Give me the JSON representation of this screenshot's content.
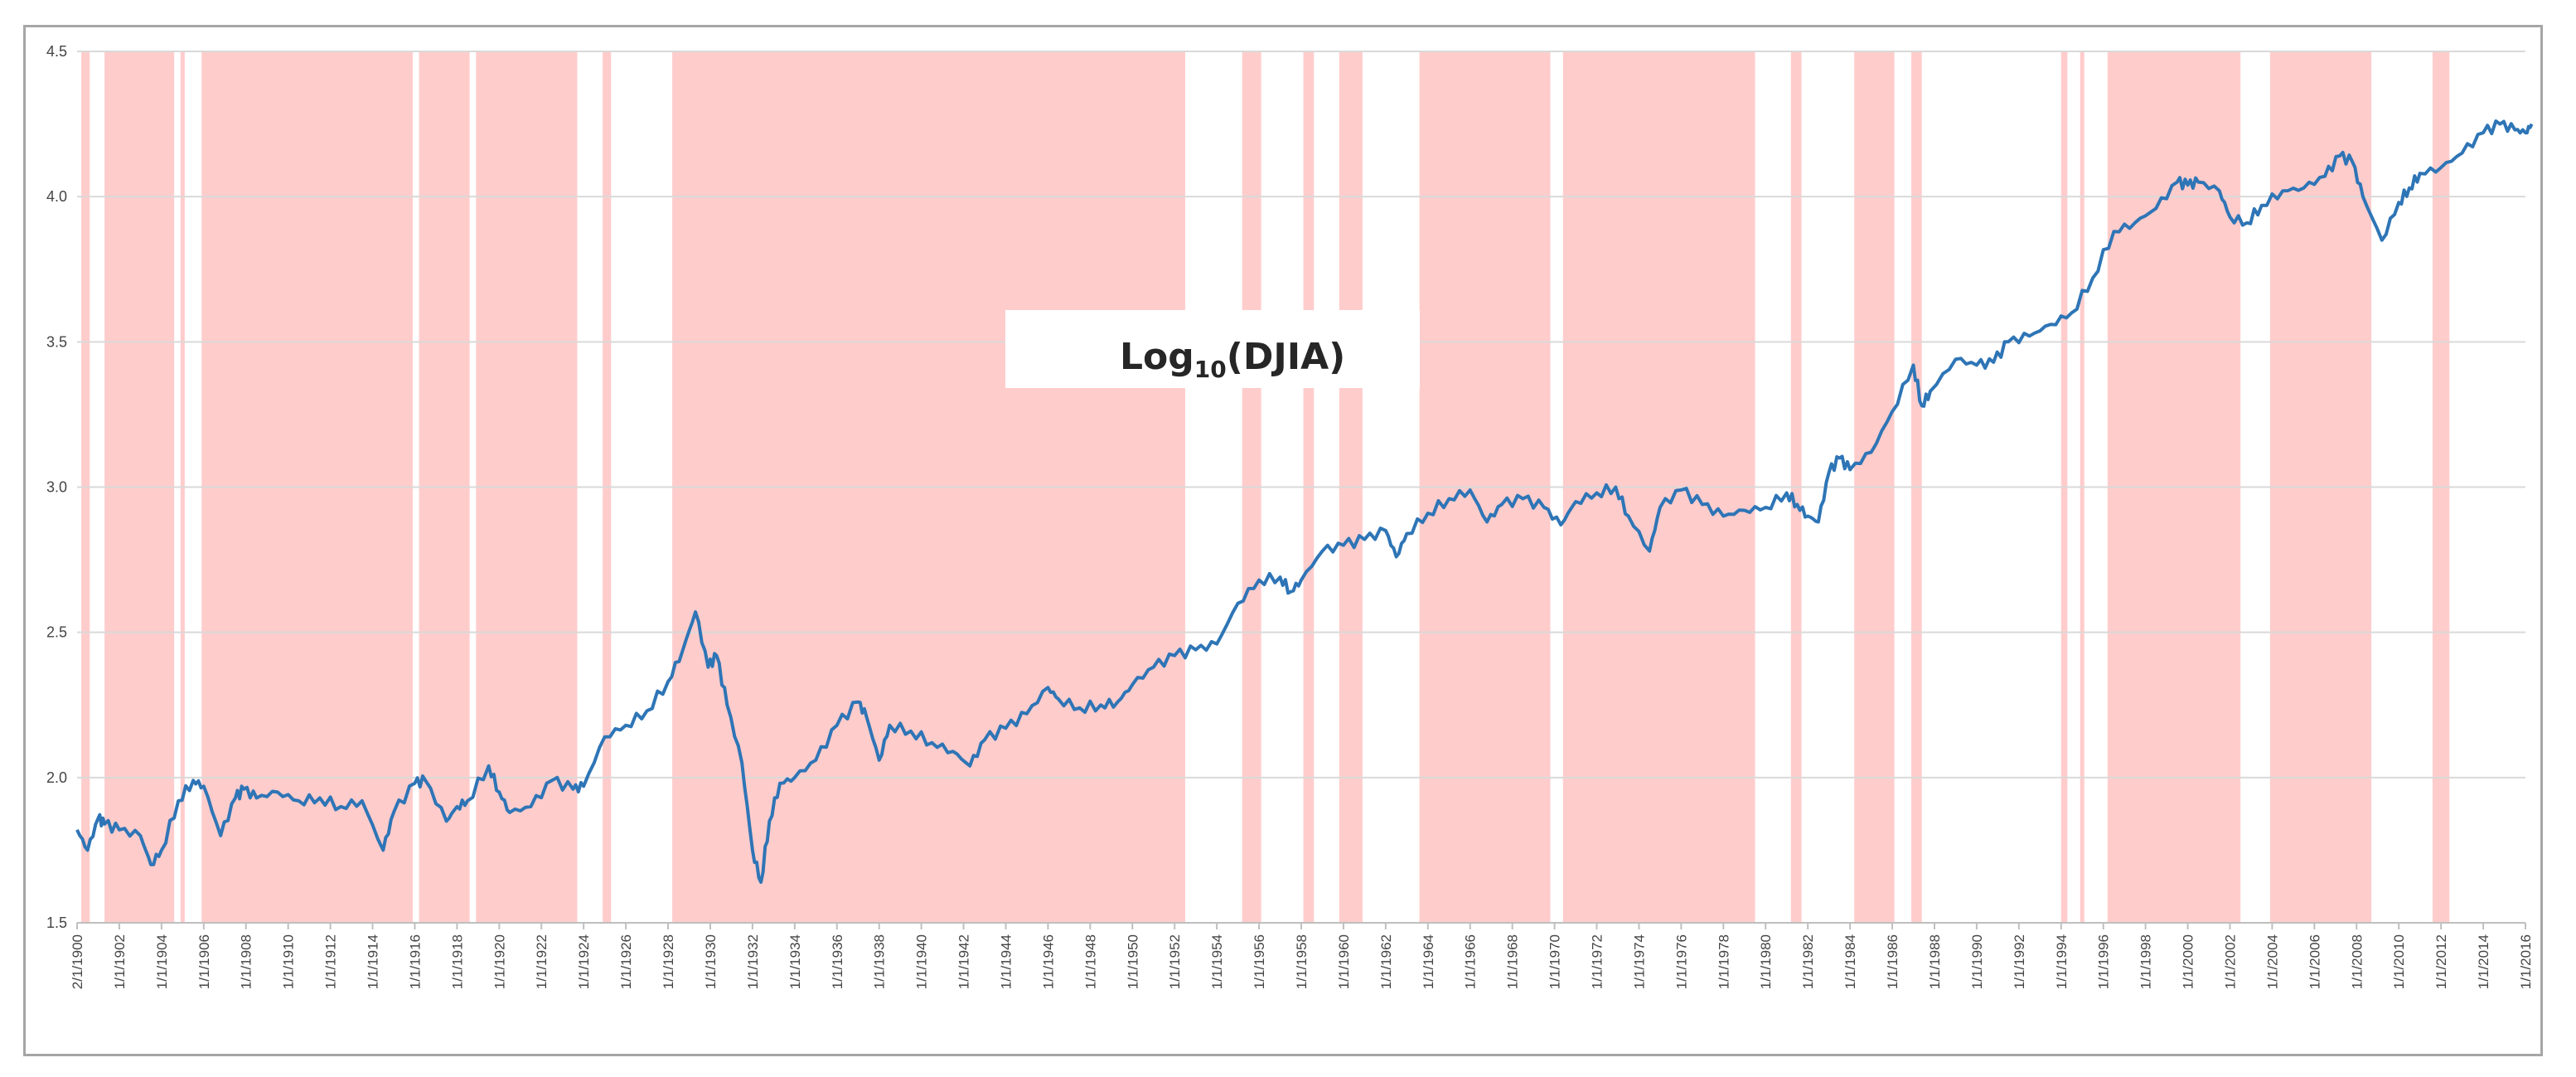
{
  "chart_data": {
    "type": "line",
    "title_main": "Log",
    "title_sub": "10",
    "title_rest": "(DJIA)",
    "ylim": [
      1.5,
      4.5
    ],
    "yticks": [
      "1.5",
      "2.0",
      "2.5",
      "3.0",
      "3.5",
      "4.0",
      "4.5"
    ],
    "xlim": [
      1900,
      2016
    ],
    "xticks": [
      {
        "year": 1900,
        "label": "2/1/1900"
      },
      {
        "year": 1902,
        "label": "1/1/1902"
      },
      {
        "year": 1904,
        "label": "1/1/1904"
      },
      {
        "year": 1906,
        "label": "1/1/1906"
      },
      {
        "year": 1908,
        "label": "1/1/1908"
      },
      {
        "year": 1910,
        "label": "1/1/1910"
      },
      {
        "year": 1912,
        "label": "1/1/1912"
      },
      {
        "year": 1914,
        "label": "1/1/1914"
      },
      {
        "year": 1916,
        "label": "1/1/1916"
      },
      {
        "year": 1918,
        "label": "1/1/1918"
      },
      {
        "year": 1920,
        "label": "1/1/1920"
      },
      {
        "year": 1922,
        "label": "1/1/1922"
      },
      {
        "year": 1924,
        "label": "1/1/1924"
      },
      {
        "year": 1926,
        "label": "1/1/1926"
      },
      {
        "year": 1928,
        "label": "1/1/1928"
      },
      {
        "year": 1930,
        "label": "1/1/1930"
      },
      {
        "year": 1932,
        "label": "1/1/1932"
      },
      {
        "year": 1934,
        "label": "1/1/1934"
      },
      {
        "year": 1936,
        "label": "1/1/1936"
      },
      {
        "year": 1938,
        "label": "1/1/1938"
      },
      {
        "year": 1940,
        "label": "1/1/1940"
      },
      {
        "year": 1942,
        "label": "1/1/1942"
      },
      {
        "year": 1944,
        "label": "1/1/1944"
      },
      {
        "year": 1946,
        "label": "1/1/1946"
      },
      {
        "year": 1948,
        "label": "1/1/1948"
      },
      {
        "year": 1950,
        "label": "1/1/1950"
      },
      {
        "year": 1952,
        "label": "1/1/1952"
      },
      {
        "year": 1954,
        "label": "1/1/1954"
      },
      {
        "year": 1956,
        "label": "1/1/1956"
      },
      {
        "year": 1958,
        "label": "1/1/1958"
      },
      {
        "year": 1960,
        "label": "1/1/1960"
      },
      {
        "year": 1962,
        "label": "1/1/1962"
      },
      {
        "year": 1964,
        "label": "1/1/1964"
      },
      {
        "year": 1966,
        "label": "1/1/1966"
      },
      {
        "year": 1968,
        "label": "1/1/1968"
      },
      {
        "year": 1970,
        "label": "1/1/1970"
      },
      {
        "year": 1972,
        "label": "1/1/1972"
      },
      {
        "year": 1974,
        "label": "1/1/1974"
      },
      {
        "year": 1976,
        "label": "1/1/1976"
      },
      {
        "year": 1978,
        "label": "1/1/1978"
      },
      {
        "year": 1980,
        "label": "1/1/1980"
      },
      {
        "year": 1982,
        "label": "1/1/1982"
      },
      {
        "year": 1984,
        "label": "1/1/1984"
      },
      {
        "year": 1986,
        "label": "1/1/1986"
      },
      {
        "year": 1988,
        "label": "1/1/1988"
      },
      {
        "year": 1990,
        "label": "1/1/1990"
      },
      {
        "year": 1992,
        "label": "1/1/1992"
      },
      {
        "year": 1994,
        "label": "1/1/1994"
      },
      {
        "year": 1996,
        "label": "1/1/1996"
      },
      {
        "year": 1998,
        "label": "1/1/1998"
      },
      {
        "year": 2000,
        "label": "1/1/2000"
      },
      {
        "year": 2002,
        "label": "1/1/2002"
      },
      {
        "year": 2004,
        "label": "1/1/2004"
      },
      {
        "year": 2006,
        "label": "1/1/2006"
      },
      {
        "year": 2008,
        "label": "1/1/2008"
      },
      {
        "year": 2010,
        "label": "1/1/2010"
      },
      {
        "year": 2012,
        "label": "1/1/2012"
      },
      {
        "year": 2014,
        "label": "1/1/2014"
      },
      {
        "year": 2016,
        "label": "1/1/2016"
      }
    ],
    "grid": true,
    "shaded_periods": [
      [
        1900.2,
        1900.6
      ],
      [
        1901.3,
        1904.6
      ],
      [
        1904.9,
        1905.1
      ],
      [
        1905.9,
        1915.9
      ],
      [
        1916.2,
        1918.6
      ],
      [
        1918.9,
        1923.7
      ],
      [
        1924.9,
        1925.3
      ],
      [
        1928.2,
        1952.5
      ],
      [
        1955.2,
        1956.1
      ],
      [
        1958.1,
        1958.6
      ],
      [
        1959.8,
        1960.9
      ],
      [
        1963.6,
        1969.8
      ],
      [
        1970.4,
        1979.5
      ],
      [
        1981.2,
        1981.7
      ],
      [
        1984.2,
        1986.1
      ],
      [
        1986.9,
        1987.4
      ],
      [
        1994.0,
        1994.3
      ],
      [
        1994.9,
        1995.1
      ],
      [
        1996.2,
        2002.5
      ],
      [
        2003.9,
        2008.7
      ],
      [
        2011.6,
        2012.4
      ]
    ],
    "shade_color": "#ffcccc",
    "line_color": "#2e75b6",
    "series": [
      {
        "x": [
          1900.0,
          1900.5,
          1901.0,
          1901.3,
          1902.0,
          1903.0,
          1903.5,
          1904.0,
          1904.8,
          1905.5,
          1906.0,
          1906.8,
          1907.5,
          1907.9,
          1908.5,
          1909.5,
          1910.5,
          1911.5,
          1912.5,
          1913.5,
          1914.5,
          1915.0,
          1916.0,
          1916.5,
          1917.5,
          1918.0,
          1918.5,
          1919.5,
          1920.0,
          1920.5,
          1921.5,
          1922.5,
          1923.5,
          1924.0,
          1925.0,
          1926.0,
          1927.0,
          1928.0,
          1928.7,
          1929.3,
          1929.9,
          1930.3,
          1930.8,
          1931.5,
          1932.0,
          1932.4,
          1932.8,
          1933.3,
          1934.0,
          1935.0,
          1936.0,
          1937.0,
          1937.4,
          1938.0,
          1938.5,
          1939.5,
          1940.5,
          1941.5,
          1942.3,
          1943.0,
          1944.0,
          1945.0,
          1946.0,
          1946.5,
          1947.5,
          1948.5,
          1949.3,
          1950.0,
          1951.0,
          1952.0,
          1953.0,
          1954.0,
          1955.0,
          1956.0,
          1957.0,
          1957.5,
          1958.0,
          1959.0,
          1960.0,
          1961.0,
          1962.0,
          1962.5,
          1963.0,
          1964.0,
          1965.0,
          1966.0,
          1966.8,
          1967.5,
          1968.5,
          1969.5,
          1970.3,
          1971.0,
          1972.0,
          1972.9,
          1973.5,
          1974.5,
          1975.0,
          1976.0,
          1977.0,
          1978.0,
          1979.0,
          1980.0,
          1981.0,
          1981.5,
          1982.0,
          1982.5,
          1983.0,
          1983.5,
          1984.0,
          1985.0,
          1986.0,
          1987.0,
          1987.4,
          1987.8,
          1989.0,
          1990.0,
          1990.8,
          1991.5,
          1992.5,
          1993.5,
          1994.5,
          1995.5,
          1996.5,
          1997.5,
          1998.5,
          1999.5,
          2000.0,
          2000.5,
          2001.5,
          2002.0,
          2002.8,
          2003.5,
          2004.5,
          2005.5,
          2006.5,
          2007.2,
          2007.8,
          2008.3,
          2009.2,
          2010.0,
          2010.5,
          2011.0,
          2012.0,
          2013.0,
          2014.0,
          2014.8,
          2015.5,
          2016.0,
          2016.3
        ],
        "y": [
          1.82,
          1.75,
          1.86,
          1.84,
          1.82,
          1.8,
          1.7,
          1.75,
          1.92,
          1.99,
          1.97,
          1.8,
          1.93,
          1.96,
          1.93,
          1.95,
          1.92,
          1.93,
          1.9,
          1.92,
          1.75,
          1.88,
          1.98,
          1.99,
          1.85,
          1.9,
          1.92,
          2.04,
          1.95,
          1.88,
          1.9,
          1.99,
          1.96,
          1.97,
          2.14,
          2.18,
          2.23,
          2.33,
          2.44,
          2.57,
          2.38,
          2.42,
          2.25,
          2.05,
          1.75,
          1.64,
          1.85,
          1.98,
          2.0,
          2.06,
          2.18,
          2.26,
          2.21,
          2.06,
          2.18,
          2.16,
          2.12,
          2.09,
          2.04,
          2.13,
          2.17,
          2.22,
          2.31,
          2.27,
          2.24,
          2.25,
          2.26,
          2.32,
          2.38,
          2.42,
          2.44,
          2.46,
          2.6,
          2.68,
          2.69,
          2.64,
          2.68,
          2.78,
          2.8,
          2.82,
          2.85,
          2.76,
          2.84,
          2.91,
          2.96,
          2.99,
          2.88,
          2.94,
          2.96,
          2.93,
          2.87,
          2.95,
          2.98,
          3.0,
          2.9,
          2.78,
          2.93,
          2.99,
          2.94,
          2.9,
          2.92,
          2.93,
          2.98,
          2.94,
          2.9,
          2.88,
          3.05,
          3.1,
          3.06,
          3.12,
          3.26,
          3.42,
          3.28,
          3.33,
          3.44,
          3.42,
          3.43,
          3.5,
          3.52,
          3.56,
          3.6,
          3.72,
          3.88,
          3.91,
          3.96,
          4.05,
          4.04,
          4.05,
          4.02,
          3.93,
          3.91,
          3.97,
          4.02,
          4.03,
          4.07,
          4.14,
          4.12,
          4.0,
          3.85,
          3.98,
          4.03,
          4.08,
          4.1,
          4.15,
          4.22,
          4.25,
          4.23,
          4.22,
          4.25
        ]
      }
    ]
  }
}
